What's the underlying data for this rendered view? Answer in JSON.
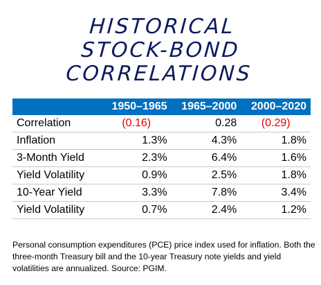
{
  "title": {
    "line1": "Historical",
    "line2": "Stock-Bond",
    "line3": "Correlations"
  },
  "chart_data": {
    "type": "table",
    "columns": [
      "",
      "1950–1965",
      "1965–2000",
      "2000–2020"
    ],
    "rows": [
      {
        "label": "Correlation",
        "values": [
          "(0.16)",
          "0.28",
          "(0.29)"
        ],
        "numeric": [
          -0.16,
          0.28,
          -0.29
        ]
      },
      {
        "label": "Inflation",
        "values": [
          "1.3%",
          "4.3%",
          "1.8%"
        ],
        "numeric": [
          1.3,
          4.3,
          1.8
        ]
      },
      {
        "label": "3-Month Yield",
        "values": [
          "2.3%",
          "6.4%",
          "1.6%"
        ],
        "numeric": [
          2.3,
          6.4,
          1.6
        ]
      },
      {
        "label": "Yield Volatility",
        "values": [
          "0.9%",
          "2.5%",
          "1.8%"
        ],
        "numeric": [
          0.9,
          2.5,
          1.8
        ]
      },
      {
        "label": "10-Year Yield",
        "values": [
          "3.3%",
          "7.8%",
          "3.4%"
        ],
        "numeric": [
          3.3,
          7.8,
          3.4
        ]
      },
      {
        "label": "Yield Volatility",
        "values": [
          "0.7%",
          "2.4%",
          "1.2%"
        ],
        "numeric": [
          0.7,
          2.4,
          1.2
        ]
      }
    ]
  },
  "colors": {
    "header_bg": "#0070c0",
    "negative": "#e30000",
    "title": "#0b1a5e"
  },
  "footnote": "Personal consumption expenditures (PCE) price index used for inflation. Both the three-month Treasury bill and the 10-year Treasury note yields and yield volatilities are annualized. Source: PGIM."
}
